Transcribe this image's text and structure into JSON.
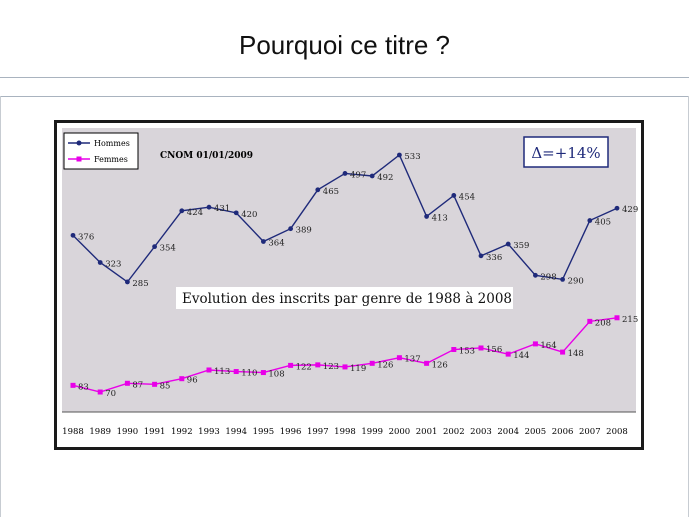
{
  "slide": {
    "title": "Pourquoi ce titre ?"
  },
  "chart_data": {
    "type": "line",
    "x": [
      1988,
      1989,
      1990,
      1991,
      1992,
      1993,
      1994,
      1995,
      1996,
      1997,
      1998,
      1999,
      2000,
      2001,
      2002,
      2003,
      2004,
      2005,
      2006,
      2007,
      2008
    ],
    "series": [
      {
        "name": "Hommes",
        "color": "#1f2a7a",
        "values": [
          376,
          323,
          285,
          354,
          424,
          431,
          420,
          364,
          389,
          465,
          497,
          492,
          533,
          413,
          454,
          336,
          359,
          298,
          290,
          405,
          429
        ]
      },
      {
        "name": "Femmes",
        "color": "#e800e8",
        "values": [
          83,
          70,
          87,
          85,
          96,
          113,
          110,
          108,
          122,
          123,
          119,
          126,
          137,
          126,
          153,
          156,
          144,
          164,
          148,
          208,
          215
        ]
      }
    ],
    "source_label": "CNOM 01/01/2009",
    "annotation": "Δ=+14%",
    "caption": "Evolution des inscrits par genre de 1988 à 2008",
    "legend_position": "top-left",
    "grid": false,
    "background": "#d9d5da"
  }
}
